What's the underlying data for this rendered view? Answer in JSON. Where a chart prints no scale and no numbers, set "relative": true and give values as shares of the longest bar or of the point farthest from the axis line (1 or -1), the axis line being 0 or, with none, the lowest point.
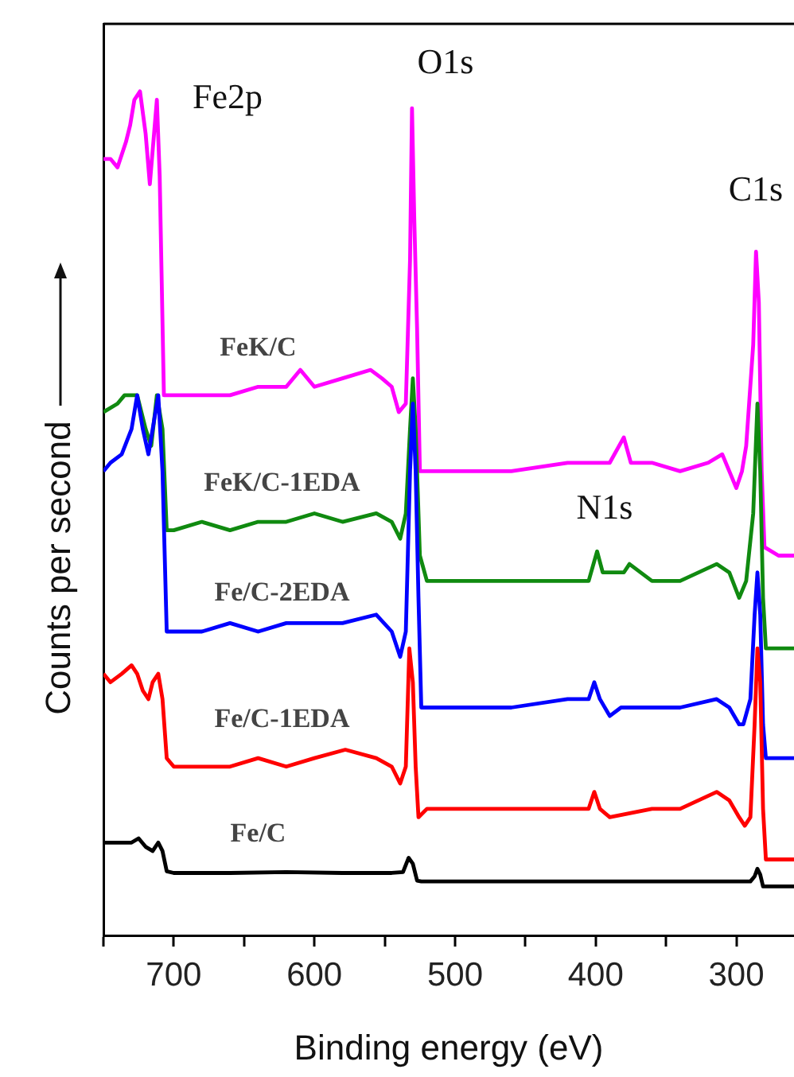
{
  "chart_data": {
    "type": "line",
    "relative": true,
    "xlabel": "Binding energy (eV)",
    "ylabel": "Counts per second",
    "xlim": [
      750,
      259
    ],
    "xticks": [
      {
        "value": 750,
        "label": null
      },
      700,
      {
        "value": 650,
        "label": null
      },
      600,
      {
        "value": 550,
        "label": null
      },
      500,
      {
        "value": 450,
        "label": null
      },
      400,
      {
        "value": 350,
        "label": null
      },
      300
    ],
    "grid": false,
    "legend": false,
    "marker": "none",
    "line_style": "solid",
    "annotations": [
      "Fe2p",
      "O1s",
      "N1s",
      "C1s"
    ],
    "series": [
      {
        "name": "FeK/C",
        "color": "#ff00ff",
        "x": [
          750,
          745,
          740,
          734,
          731,
          728,
          724,
          720,
          717,
          714,
          712,
          710,
          707,
          700,
          680,
          660,
          640,
          620,
          610,
          600,
          580,
          560,
          552,
          545,
          540,
          535,
          532,
          530.6,
          529,
          527,
          525,
          500,
          460,
          420,
          390,
          380,
          375,
          360,
          340,
          320,
          310,
          305,
          300,
          296,
          293,
          288,
          286,
          284,
          282,
          280,
          270,
          259
        ],
        "values": [
          0.92,
          0.92,
          0.91,
          0.94,
          0.96,
          0.99,
          1.0,
          0.95,
          0.89,
          0.95,
          0.99,
          0.9,
          0.64,
          0.64,
          0.64,
          0.64,
          0.65,
          0.65,
          0.67,
          0.65,
          0.66,
          0.67,
          0.66,
          0.65,
          0.62,
          0.63,
          0.8,
          0.98,
          0.85,
          0.72,
          0.55,
          0.55,
          0.55,
          0.56,
          0.56,
          0.59,
          0.56,
          0.56,
          0.55,
          0.56,
          0.57,
          0.55,
          0.53,
          0.55,
          0.58,
          0.7,
          0.81,
          0.75,
          0.55,
          0.46,
          0.45,
          0.45
        ]
      },
      {
        "name": "FeK/C-1EDA",
        "color": "#108a10",
        "x": [
          750,
          740,
          735,
          726,
          720,
          716,
          712,
          708,
          705,
          700,
          680,
          660,
          640,
          620,
          600,
          580,
          556,
          545,
          539,
          535,
          532,
          530,
          528,
          525,
          520,
          500,
          460,
          420,
          405,
          399,
          395,
          380,
          376,
          360,
          340,
          314,
          305,
          298,
          293,
          288,
          285,
          283,
          281,
          279,
          259
        ],
        "values": [
          0.62,
          0.63,
          0.64,
          0.64,
          0.6,
          0.58,
          0.64,
          0.6,
          0.48,
          0.48,
          0.49,
          0.48,
          0.49,
          0.49,
          0.5,
          0.49,
          0.5,
          0.49,
          0.47,
          0.5,
          0.6,
          0.66,
          0.6,
          0.45,
          0.42,
          0.42,
          0.42,
          0.42,
          0.42,
          0.455,
          0.43,
          0.43,
          0.44,
          0.42,
          0.42,
          0.44,
          0.43,
          0.4,
          0.42,
          0.5,
          0.63,
          0.55,
          0.4,
          0.34,
          0.34
        ]
      },
      {
        "name": "Fe/C-2EDA",
        "color": "#0000ff",
        "x": [
          750,
          745,
          737,
          730,
          726,
          722,
          718,
          715,
          711,
          708,
          705,
          700,
          680,
          660,
          640,
          620,
          600,
          580,
          556,
          545,
          539,
          535,
          532,
          530,
          528,
          526,
          524,
          500,
          460,
          420,
          405,
          401,
          397,
          390,
          382,
          360,
          340,
          314,
          305,
          298,
          295,
          290,
          287,
          285,
          283,
          281,
          279,
          259
        ],
        "values": [
          0.55,
          0.56,
          0.57,
          0.6,
          0.64,
          0.6,
          0.57,
          0.6,
          0.64,
          0.55,
          0.36,
          0.36,
          0.36,
          0.37,
          0.36,
          0.37,
          0.37,
          0.37,
          0.38,
          0.36,
          0.33,
          0.36,
          0.55,
          0.63,
          0.55,
          0.4,
          0.27,
          0.27,
          0.27,
          0.28,
          0.28,
          0.3,
          0.28,
          0.26,
          0.27,
          0.27,
          0.27,
          0.28,
          0.27,
          0.25,
          0.25,
          0.28,
          0.38,
          0.43,
          0.38,
          0.25,
          0.21,
          0.21
        ]
      },
      {
        "name": "Fe/C-1EDA",
        "color": "#ff0000",
        "x": [
          750,
          745,
          737,
          730,
          726,
          722,
          718,
          715,
          711,
          708,
          705,
          700,
          680,
          660,
          640,
          620,
          600,
          578,
          556,
          545,
          539,
          535,
          532.5,
          530,
          528,
          526,
          520,
          500,
          460,
          420,
          405,
          401,
          397,
          390,
          360,
          340,
          314,
          305,
          298,
          294,
          290,
          287,
          285,
          283,
          281,
          279,
          259
        ],
        "values": [
          0.31,
          0.3,
          0.31,
          0.32,
          0.31,
          0.29,
          0.28,
          0.3,
          0.31,
          0.28,
          0.21,
          0.2,
          0.2,
          0.2,
          0.21,
          0.2,
          0.21,
          0.22,
          0.21,
          0.2,
          0.18,
          0.2,
          0.34,
          0.3,
          0.2,
          0.14,
          0.15,
          0.15,
          0.15,
          0.15,
          0.15,
          0.17,
          0.15,
          0.14,
          0.15,
          0.15,
          0.17,
          0.16,
          0.14,
          0.13,
          0.14,
          0.25,
          0.34,
          0.3,
          0.15,
          0.09,
          0.09
        ]
      },
      {
        "name": "Fe/C",
        "color": "#000000",
        "x": [
          750,
          740,
          730,
          725,
          720,
          715,
          711,
          708,
          705,
          700,
          660,
          620,
          580,
          545,
          537,
          533,
          530,
          527,
          524,
          500,
          450,
          400,
          350,
          300,
          290,
          287,
          285,
          283,
          281,
          279,
          259
        ],
        "values": [
          0.11,
          0.11,
          0.11,
          0.115,
          0.105,
          0.1,
          0.11,
          0.1,
          0.076,
          0.074,
          0.074,
          0.075,
          0.074,
          0.074,
          0.075,
          0.092,
          0.085,
          0.065,
          0.064,
          0.064,
          0.064,
          0.064,
          0.064,
          0.064,
          0.064,
          0.07,
          0.079,
          0.072,
          0.058,
          0.058,
          0.058
        ]
      }
    ]
  }
}
